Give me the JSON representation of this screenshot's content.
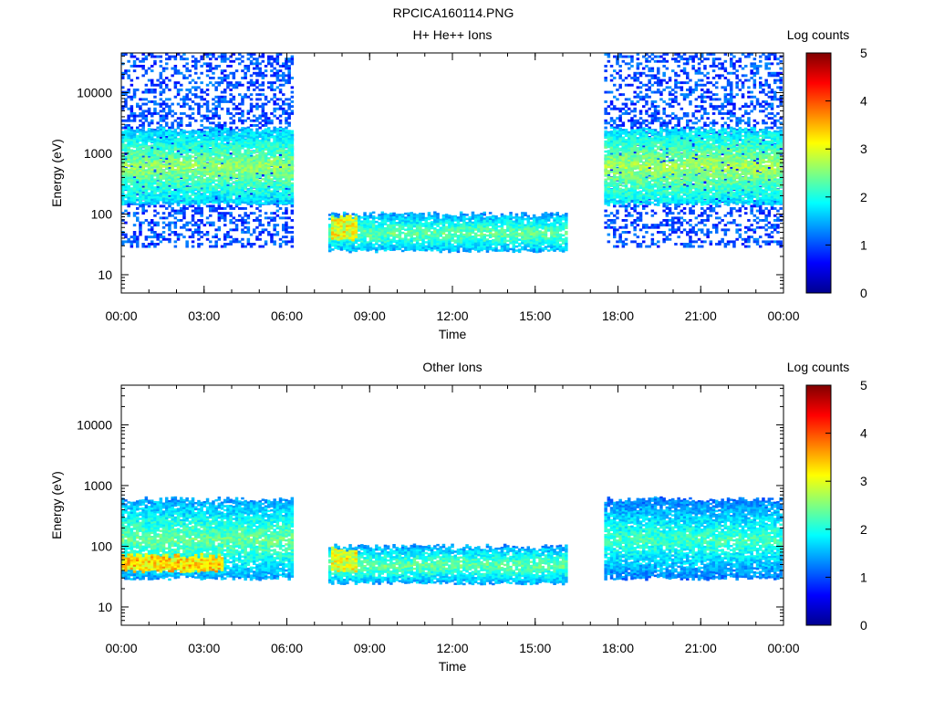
{
  "figure_title": "RPCICA160114.PNG",
  "chart_data": [
    {
      "type": "heatmap",
      "title": "H+ He++ Ions",
      "xlabel": "Time",
      "ylabel": "Energy (eV)",
      "x_ticks": [
        "00:00",
        "03:00",
        "06:00",
        "09:00",
        "12:00",
        "15:00",
        "18:00",
        "21:00",
        "00:00"
      ],
      "x_range_hours": [
        0,
        24
      ],
      "y_scale": "log",
      "y_range": [
        5,
        45000
      ],
      "y_ticks": [
        {
          "value": 10,
          "label": "10"
        },
        {
          "value": 100,
          "label": "100"
        },
        {
          "value": 1000,
          "label": "1000"
        },
        {
          "value": 10000,
          "label": "10000"
        }
      ],
      "colorbar": {
        "label": "Log counts",
        "range": [
          0,
          5
        ],
        "ticks": [
          "0",
          "1",
          "2",
          "3",
          "4",
          "5"
        ],
        "colormap": "jet"
      },
      "data_intervals_hours": [
        [
          0,
          6.15
        ],
        [
          7.5,
          16.1
        ],
        [
          17.5,
          23.95
        ]
      ],
      "features": [
        {
          "t": [
            0,
            6.15
          ],
          "energy_eV": [
            30,
            45000
          ],
          "log_counts": 1.0,
          "kind": "sparse background"
        },
        {
          "t": [
            0,
            6.15
          ],
          "energy_eV": [
            150,
            2500
          ],
          "log_counts": 2.2,
          "kind": "main ion band"
        },
        {
          "t": [
            7.5,
            16.1
          ],
          "energy_eV": [
            25,
            100
          ],
          "log_counts": 2.0,
          "kind": "low-energy band"
        },
        {
          "t": [
            7.6,
            8.5
          ],
          "energy_eV": [
            40,
            90
          ],
          "log_counts": 3.0,
          "kind": "enhancement"
        },
        {
          "t": [
            17.5,
            23.95
          ],
          "energy_eV": [
            30,
            45000
          ],
          "log_counts": 1.0,
          "kind": "sparse background"
        },
        {
          "t": [
            17.5,
            23.95
          ],
          "energy_eV": [
            150,
            2500
          ],
          "log_counts": 2.3,
          "kind": "main ion band"
        }
      ]
    },
    {
      "type": "heatmap",
      "title": "Other Ions",
      "xlabel": "Time",
      "ylabel": "Energy (eV)",
      "x_ticks": [
        "00:00",
        "03:00",
        "06:00",
        "09:00",
        "12:00",
        "15:00",
        "18:00",
        "21:00",
        "00:00"
      ],
      "x_range_hours": [
        0,
        24
      ],
      "y_scale": "log",
      "y_range": [
        5,
        45000
      ],
      "y_ticks": [
        {
          "value": 10,
          "label": "10"
        },
        {
          "value": 100,
          "label": "100"
        },
        {
          "value": 1000,
          "label": "1000"
        },
        {
          "value": 10000,
          "label": "10000"
        }
      ],
      "colorbar": {
        "label": "Log counts",
        "range": [
          0,
          5
        ],
        "ticks": [
          "0",
          "1",
          "2",
          "3",
          "4",
          "5"
        ],
        "colormap": "jet"
      },
      "data_intervals_hours": [
        [
          0,
          6.15
        ],
        [
          7.5,
          16.1
        ],
        [
          17.5,
          23.95
        ]
      ],
      "features": [
        {
          "t": [
            0,
            6.15
          ],
          "energy_eV": [
            30,
            600
          ],
          "log_counts": 2.0,
          "kind": "broad band"
        },
        {
          "t": [
            0,
            3.7
          ],
          "energy_eV": [
            40,
            70
          ],
          "log_counts": 3.3,
          "kind": "low-energy enhancement"
        },
        {
          "t": [
            7.5,
            16.1
          ],
          "energy_eV": [
            25,
            100
          ],
          "log_counts": 2.0,
          "kind": "low-energy band"
        },
        {
          "t": [
            7.6,
            8.5
          ],
          "energy_eV": [
            40,
            90
          ],
          "log_counts": 3.0,
          "kind": "enhancement"
        },
        {
          "t": [
            17.5,
            23.95
          ],
          "energy_eV": [
            30,
            600
          ],
          "log_counts": 1.8,
          "kind": "broad band"
        }
      ]
    }
  ]
}
